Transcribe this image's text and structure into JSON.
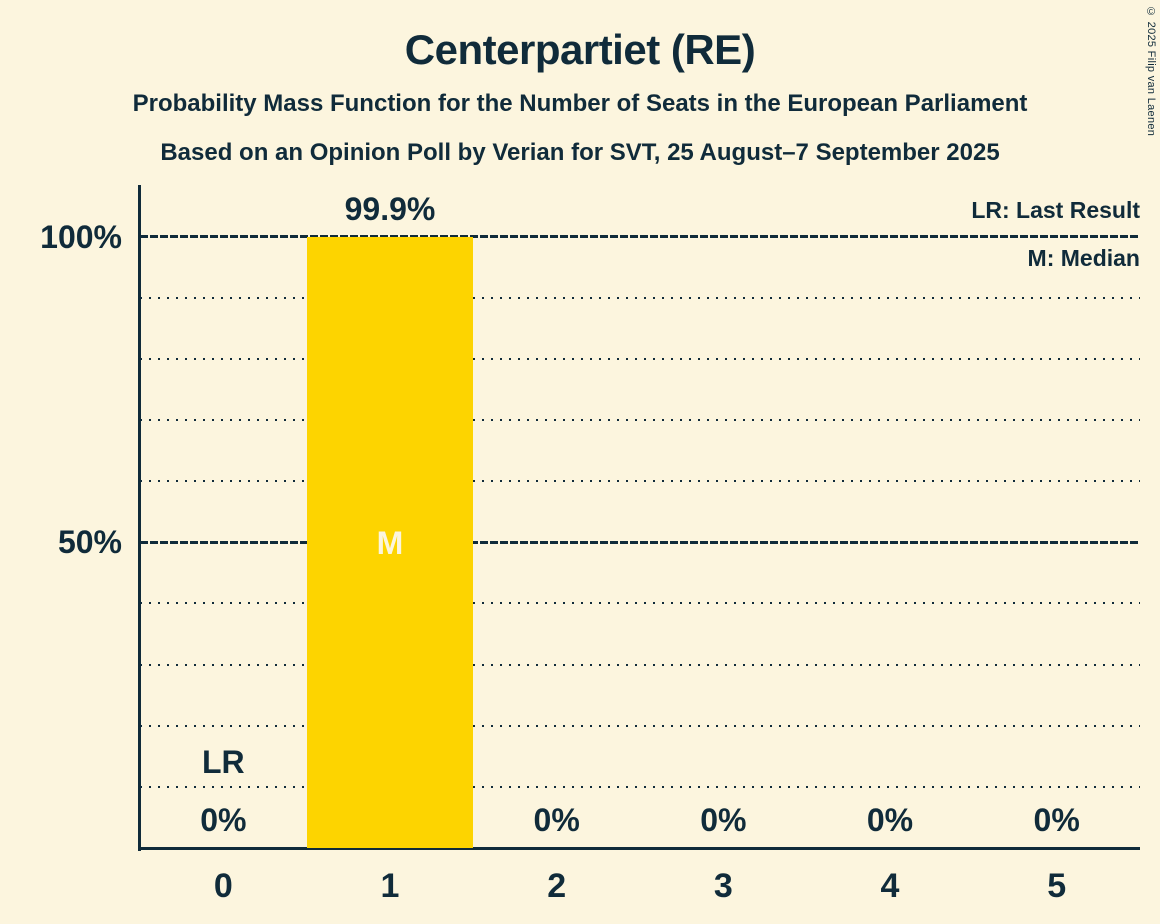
{
  "header": {
    "title": "Centerpartiet (RE)",
    "subtitle1": "Probability Mass Function for the Number of Seats in the European Parliament",
    "subtitle2": "Based on an Opinion Poll by Verian for SVT, 25 August–7 September 2025"
  },
  "legend": {
    "lr": "LR: Last Result",
    "m": "M: Median"
  },
  "copyright": "© 2025 Filip van Laenen",
  "colors": {
    "background": "#FCF5DE",
    "text": "#102B3A",
    "bar": "#FDD400",
    "bar_label": "#FCF5DE"
  },
  "chart_data": {
    "type": "bar",
    "title": "Centerpartiet (RE)",
    "categories": [
      "0",
      "1",
      "2",
      "3",
      "4",
      "5"
    ],
    "values": [
      0,
      99.9,
      0,
      0,
      0,
      0
    ],
    "value_labels": [
      "0%",
      "99.9%",
      "0%",
      "0%",
      "0%",
      "0%"
    ],
    "ylim": [
      0,
      108
    ],
    "yticks": [
      {
        "pct": 100,
        "label": "100%"
      },
      {
        "pct": 50,
        "label": "50%"
      }
    ],
    "gridlines": {
      "minor_pcts": [
        10,
        20,
        30,
        40,
        60,
        70,
        80,
        90
      ],
      "major_pcts": [
        50,
        100
      ]
    },
    "median": {
      "category_index": 1,
      "label": "M"
    },
    "last_result": {
      "category_index": 0,
      "label": "LR"
    },
    "grid": "dotted-horizontal",
    "legend_position": "top-right"
  }
}
